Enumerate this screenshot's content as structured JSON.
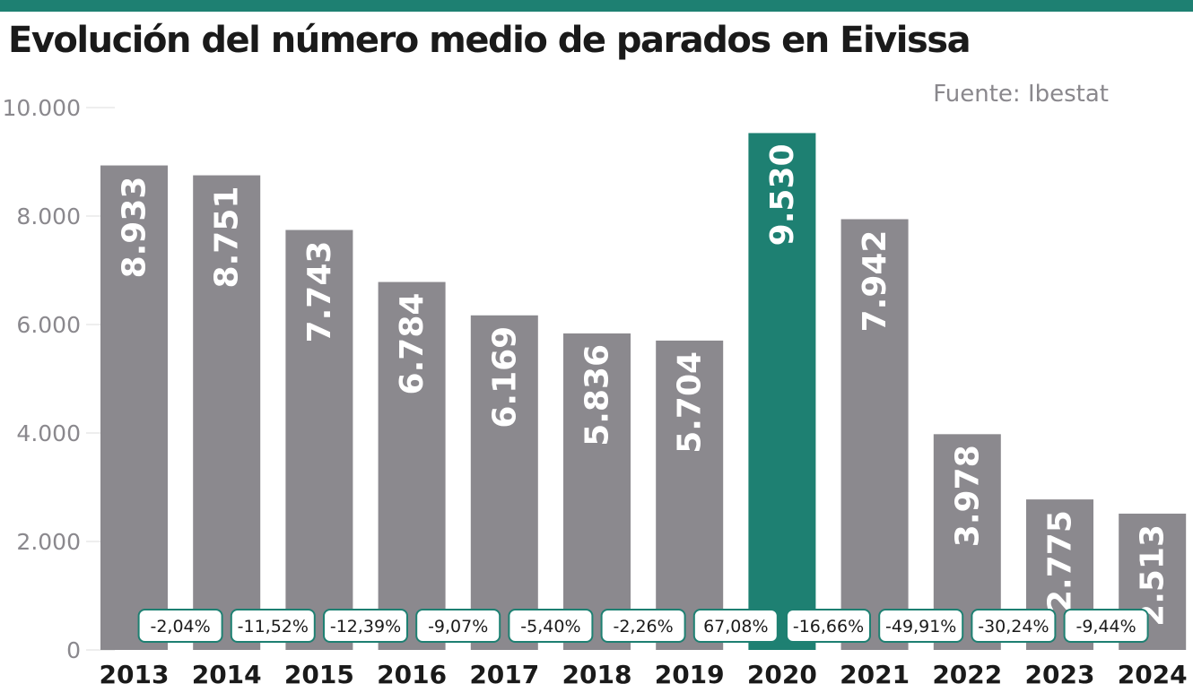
{
  "header": {
    "title": "Evolución del número medio de parados en Eivissa",
    "source": "Fuente: Ibestat"
  },
  "colors": {
    "accent": "#1e8072",
    "bar": "#8b898e",
    "highlight": "#1e8072",
    "axis_text": "#8a888d",
    "text": "#1a1a1a"
  },
  "chart_data": {
    "type": "bar",
    "title": "Evolución del número medio de parados en Eivissa",
    "xlabel": "",
    "ylabel": "",
    "categories": [
      "2013",
      "2014",
      "2015",
      "2016",
      "2017",
      "2018",
      "2019",
      "2020",
      "2021",
      "2022",
      "2023",
      "2024"
    ],
    "values": [
      8933,
      8751,
      7743,
      6784,
      6169,
      5836,
      5704,
      9530,
      7942,
      3978,
      2775,
      2513
    ],
    "value_labels": [
      "8.933",
      "8.751",
      "7.743",
      "6.784",
      "6.169",
      "5.836",
      "5.704",
      "9.530",
      "7.942",
      "3.978",
      "2.775",
      "2.513"
    ],
    "highlight_category": "2020",
    "ylim": [
      0,
      10000
    ],
    "yticks": [
      0,
      2000,
      4000,
      6000,
      8000,
      10000
    ],
    "ytick_labels": [
      "0",
      "2.000",
      "4.000",
      "6.000",
      "8.000",
      "10.000"
    ],
    "grid": false,
    "annotations": [
      "-2,04%",
      "-11,52%",
      "-12,39%",
      "-9,07%",
      "-5,40%",
      "-2,26%",
      "67,08%",
      "-16,66%",
      "-49,91%",
      "-30,24%",
      "-9,44%"
    ]
  }
}
